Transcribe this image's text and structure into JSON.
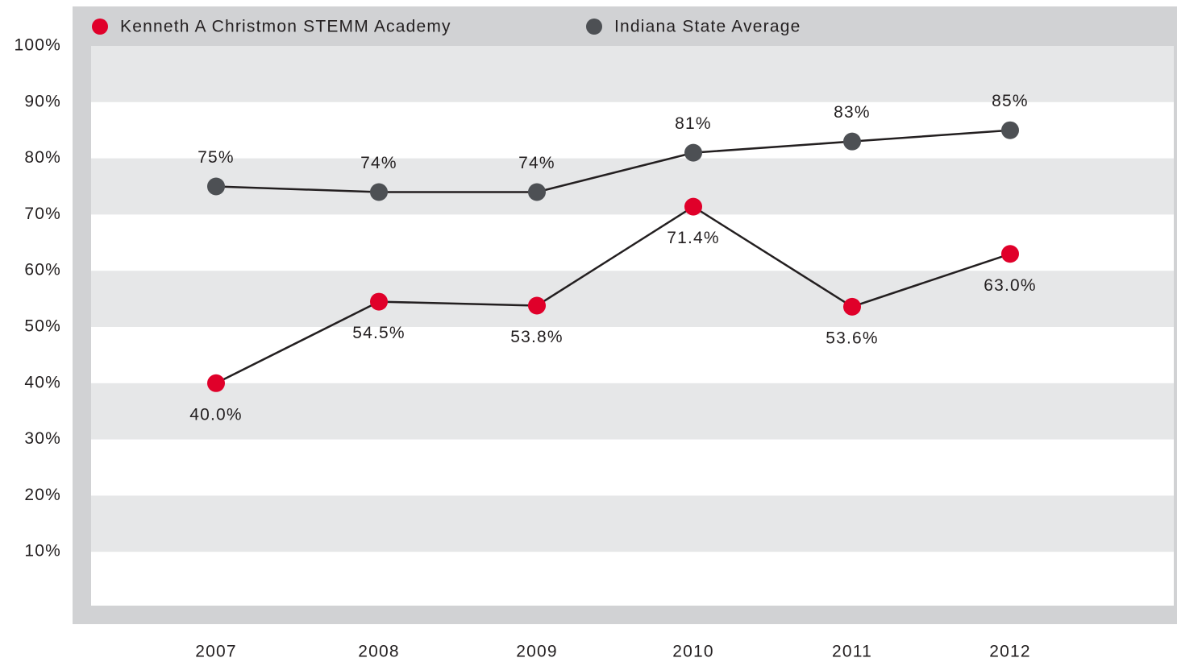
{
  "chart_data": {
    "type": "line",
    "categories": [
      "2007",
      "2008",
      "2009",
      "2010",
      "2011",
      "2012"
    ],
    "series": [
      {
        "name": "Kenneth A Christmon STEMM Academy",
        "color": "#e0002a",
        "values": [
          40.0,
          54.5,
          53.8,
          71.4,
          53.6,
          63.0
        ],
        "value_labels": [
          "40.0%",
          "54.5%",
          "53.8%",
          "71.4%",
          "53.6%",
          "63.0%"
        ]
      },
      {
        "name": "Indiana State Average",
        "color": "#4d5054",
        "values": [
          75,
          74,
          74,
          81,
          83,
          85
        ],
        "value_labels": [
          "75%",
          "74%",
          "74%",
          "81%",
          "83%",
          "85%"
        ]
      }
    ],
    "ylim": [
      0,
      100
    ],
    "yticks": [
      {
        "value": 10,
        "label": "10%"
      },
      {
        "value": 20,
        "label": "20%"
      },
      {
        "value": 30,
        "label": "30%"
      },
      {
        "value": 40,
        "label": "40%"
      },
      {
        "value": 50,
        "label": "50%"
      },
      {
        "value": 60,
        "label": "60%"
      },
      {
        "value": 70,
        "label": "70%"
      },
      {
        "value": 80,
        "label": "80%"
      },
      {
        "value": 90,
        "label": "90%"
      },
      {
        "value": 100,
        "label": "100%"
      }
    ],
    "grid": true
  }
}
